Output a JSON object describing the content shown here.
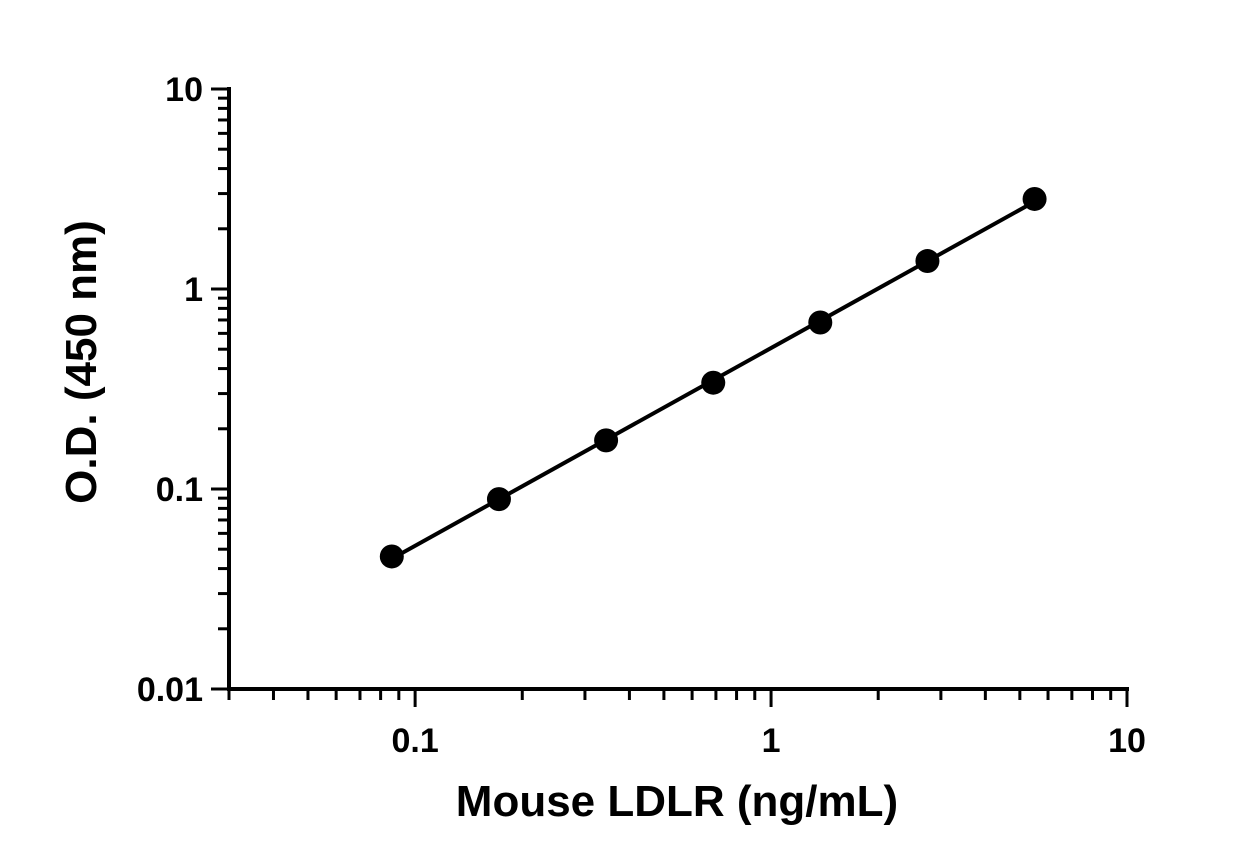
{
  "chart_data": {
    "type": "scatter",
    "title": "",
    "xlabel": "Mouse LDLR (ng/mL)",
    "ylabel": "O.D. (450 nm)",
    "x_scale": "log",
    "y_scale": "log",
    "xlim": [
      0.03,
      10
    ],
    "ylim": [
      0.01,
      10
    ],
    "x_ticks": [
      "0.1",
      "1",
      "10"
    ],
    "y_ticks": [
      "0.01",
      "0.1",
      "1",
      "10"
    ],
    "grid": false,
    "legend": "none",
    "series": [
      {
        "x": [
          0.086,
          0.172,
          0.344,
          0.688,
          1.375,
          2.75,
          5.5
        ],
        "y": [
          0.046,
          0.089,
          0.175,
          0.34,
          0.68,
          1.38,
          2.82
        ],
        "marker": "circle",
        "line": "fit",
        "color": "#000000"
      }
    ]
  }
}
